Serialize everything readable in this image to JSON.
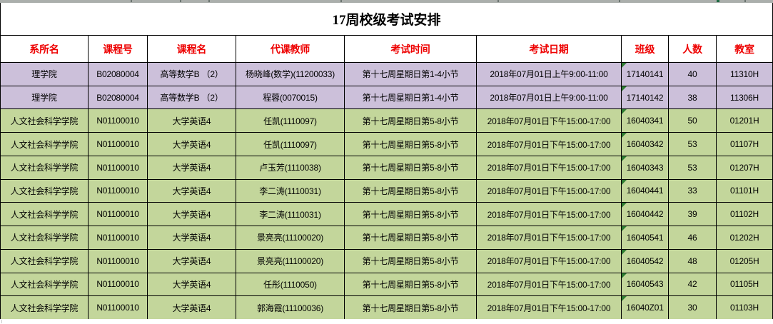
{
  "title": "17周校级考试安排",
  "colors": {
    "purple_row": "#CCC0DA",
    "green_row": "#C3D69B",
    "header_text": "#EE0000",
    "grid_border": "#000000",
    "error_indicator_green": "#2E7D32"
  },
  "table": {
    "columns": [
      {
        "key": "dept",
        "label": "系所名"
      },
      {
        "key": "course_no",
        "label": "课程号"
      },
      {
        "key": "course_name",
        "label": "课程名"
      },
      {
        "key": "teacher",
        "label": "代课教师"
      },
      {
        "key": "exam_time",
        "label": "考试时间"
      },
      {
        "key": "exam_date",
        "label": "考试日期"
      },
      {
        "key": "class_id",
        "label": "班级"
      },
      {
        "key": "count",
        "label": "人数"
      },
      {
        "key": "room",
        "label": "教室"
      }
    ],
    "rows": [
      {
        "dept": "理学院",
        "course_no": "B02080004",
        "course_name": "高等数学B （2）",
        "teacher": "杨晓峰(数学)(11200033)",
        "exam_time": "第十七周星期日第1-4小节",
        "exam_date": "2018年07月01日上午9:00-11:00",
        "class_id": "17140141",
        "count": "40",
        "room": "11310H",
        "highlight": "purple",
        "class_id_error_indicator": true
      },
      {
        "dept": "理学院",
        "course_no": "B02080004",
        "course_name": "高等数学B （2）",
        "teacher": "程蓉(0070015)",
        "exam_time": "第十七周星期日第1-4小节",
        "exam_date": "2018年07月01日上午9:00-11:00",
        "class_id": "17140142",
        "count": "38",
        "room": "11306H",
        "highlight": "purple",
        "class_id_error_indicator": true
      },
      {
        "dept": "人文社会科学学院",
        "course_no": "N01100010",
        "course_name": "大学英语4",
        "teacher": "任凯(1110097)",
        "exam_time": "第十七周星期日第5-8小节",
        "exam_date": "2018年07月01日下午15:00-17:00",
        "class_id": "16040341",
        "count": "50",
        "room": "01201H",
        "highlight": "green",
        "class_id_error_indicator": true
      },
      {
        "dept": "人文社会科学学院",
        "course_no": "N01100010",
        "course_name": "大学英语4",
        "teacher": "任凯(1110097)",
        "exam_time": "第十七周星期日第5-8小节",
        "exam_date": "2018年07月01日下午15:00-17:00",
        "class_id": "16040342",
        "count": "53",
        "room": "01107H",
        "highlight": "green",
        "class_id_error_indicator": true
      },
      {
        "dept": "人文社会科学学院",
        "course_no": "N01100010",
        "course_name": "大学英语4",
        "teacher": "卢玉芳(1110038)",
        "exam_time": "第十七周星期日第5-8小节",
        "exam_date": "2018年07月01日下午15:00-17:00",
        "class_id": "16040343",
        "count": "53",
        "room": "01207H",
        "highlight": "green",
        "class_id_error_indicator": true
      },
      {
        "dept": "人文社会科学学院",
        "course_no": "N01100010",
        "course_name": "大学英语4",
        "teacher": "李二涛(1110031)",
        "exam_time": "第十七周星期日第5-8小节",
        "exam_date": "2018年07月01日下午15:00-17:00",
        "class_id": "16040441",
        "count": "33",
        "room": "01101H",
        "highlight": "green",
        "class_id_error_indicator": true
      },
      {
        "dept": "人文社会科学学院",
        "course_no": "N01100010",
        "course_name": "大学英语4",
        "teacher": "李二涛(1110031)",
        "exam_time": "第十七周星期日第5-8小节",
        "exam_date": "2018年07月01日下午15:00-17:00",
        "class_id": "16040442",
        "count": "39",
        "room": "01102H",
        "highlight": "green",
        "class_id_error_indicator": true
      },
      {
        "dept": "人文社会科学学院",
        "course_no": "N01100010",
        "course_name": "大学英语4",
        "teacher": "景亮亮(11100020)",
        "exam_time": "第十七周星期日第5-8小节",
        "exam_date": "2018年07月01日下午15:00-17:00",
        "class_id": "16040541",
        "count": "46",
        "room": "01202H",
        "highlight": "green",
        "class_id_error_indicator": true
      },
      {
        "dept": "人文社会科学学院",
        "course_no": "N01100010",
        "course_name": "大学英语4",
        "teacher": "景亮亮(11100020)",
        "exam_time": "第十七周星期日第5-8小节",
        "exam_date": "2018年07月01日下午15:00-17:00",
        "class_id": "16040542",
        "count": "48",
        "room": "01205H",
        "highlight": "green",
        "class_id_error_indicator": true
      },
      {
        "dept": "人文社会科学学院",
        "course_no": "N01100010",
        "course_name": "大学英语4",
        "teacher": "任彤(1110050)",
        "exam_time": "第十七周星期日第5-8小节",
        "exam_date": "2018年07月01日下午15:00-17:00",
        "class_id": "16040543",
        "count": "42",
        "room": "01105H",
        "highlight": "green",
        "class_id_error_indicator": true
      },
      {
        "dept": "人文社会科学学院",
        "course_no": "N01100010",
        "course_name": "大学英语4",
        "teacher": "郭海霞(11100036)",
        "exam_time": "第十七周星期日第5-8小节",
        "exam_date": "2018年07月01日下午15:00-17:00",
        "class_id": "16040Z01",
        "count": "30",
        "room": "01103H",
        "highlight": "green",
        "class_id_error_indicator": true
      }
    ]
  }
}
